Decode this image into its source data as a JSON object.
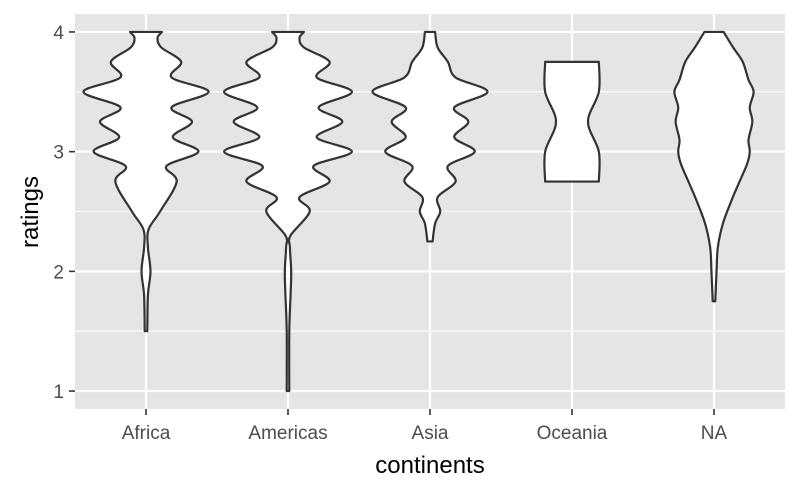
{
  "chart_data": {
    "type": "violin",
    "xlabel": "continents",
    "ylabel": "ratings",
    "categories": [
      "Africa",
      "Americas",
      "Asia",
      "Oceania",
      "NA"
    ],
    "ylim": [
      0.85,
      4.15
    ],
    "yticks": [
      1,
      2,
      3,
      4
    ],
    "grid": true,
    "panel_background": "#e5e5e5",
    "grid_color": "#ffffff",
    "violin_fill": "#ffffff",
    "violin_stroke": "#333333",
    "series": [
      {
        "category": "Africa",
        "range": [
          1.5,
          4.0
        ],
        "density": [
          [
            1.5,
            0.02
          ],
          [
            1.8,
            0.03
          ],
          [
            2.0,
            0.07
          ],
          [
            2.2,
            0.03
          ],
          [
            2.35,
            0.04
          ],
          [
            2.5,
            0.22
          ],
          [
            2.75,
            0.48
          ],
          [
            2.88,
            0.32
          ],
          [
            3.0,
            0.82
          ],
          [
            3.12,
            0.42
          ],
          [
            3.25,
            0.72
          ],
          [
            3.37,
            0.4
          ],
          [
            3.5,
            0.98
          ],
          [
            3.62,
            0.4
          ],
          [
            3.75,
            0.55
          ],
          [
            3.87,
            0.24
          ],
          [
            3.95,
            0.18
          ],
          [
            4.0,
            0.25
          ]
        ]
      },
      {
        "category": "Americas",
        "range": [
          1.0,
          4.0
        ],
        "density": [
          [
            1.0,
            0.02
          ],
          [
            1.5,
            0.02
          ],
          [
            1.8,
            0.04
          ],
          [
            2.0,
            0.05
          ],
          [
            2.2,
            0.03
          ],
          [
            2.3,
            0.04
          ],
          [
            2.5,
            0.34
          ],
          [
            2.62,
            0.18
          ],
          [
            2.75,
            0.65
          ],
          [
            2.88,
            0.4
          ],
          [
            3.0,
            1.0
          ],
          [
            3.12,
            0.45
          ],
          [
            3.25,
            0.85
          ],
          [
            3.37,
            0.48
          ],
          [
            3.5,
            1.0
          ],
          [
            3.62,
            0.45
          ],
          [
            3.75,
            0.65
          ],
          [
            3.87,
            0.25
          ],
          [
            3.95,
            0.18
          ],
          [
            4.0,
            0.25
          ]
        ]
      },
      {
        "category": "Asia",
        "range": [
          2.25,
          4.0
        ],
        "density": [
          [
            2.25,
            0.04
          ],
          [
            2.4,
            0.08
          ],
          [
            2.5,
            0.16
          ],
          [
            2.62,
            0.12
          ],
          [
            2.75,
            0.4
          ],
          [
            2.88,
            0.28
          ],
          [
            3.0,
            0.7
          ],
          [
            3.12,
            0.38
          ],
          [
            3.25,
            0.6
          ],
          [
            3.37,
            0.38
          ],
          [
            3.5,
            0.9
          ],
          [
            3.62,
            0.4
          ],
          [
            3.75,
            0.28
          ],
          [
            3.87,
            0.12
          ],
          [
            4.0,
            0.08
          ]
        ]
      },
      {
        "category": "Oceania",
        "range": [
          2.75,
          3.75
        ],
        "density": [
          [
            2.75,
            0.42
          ],
          [
            3.0,
            0.42
          ],
          [
            3.25,
            0.25
          ],
          [
            3.5,
            0.42
          ],
          [
            3.75,
            0.42
          ]
        ]
      },
      {
        "category": "NA",
        "range": [
          1.75,
          4.0
        ],
        "density": [
          [
            1.75,
            0.02
          ],
          [
            2.0,
            0.04
          ],
          [
            2.2,
            0.06
          ],
          [
            2.4,
            0.14
          ],
          [
            2.6,
            0.28
          ],
          [
            2.75,
            0.4
          ],
          [
            2.9,
            0.52
          ],
          [
            3.0,
            0.56
          ],
          [
            3.1,
            0.54
          ],
          [
            3.25,
            0.6
          ],
          [
            3.37,
            0.56
          ],
          [
            3.5,
            0.62
          ],
          [
            3.6,
            0.54
          ],
          [
            3.75,
            0.45
          ],
          [
            3.87,
            0.3
          ],
          [
            4.0,
            0.15
          ]
        ]
      }
    ]
  }
}
